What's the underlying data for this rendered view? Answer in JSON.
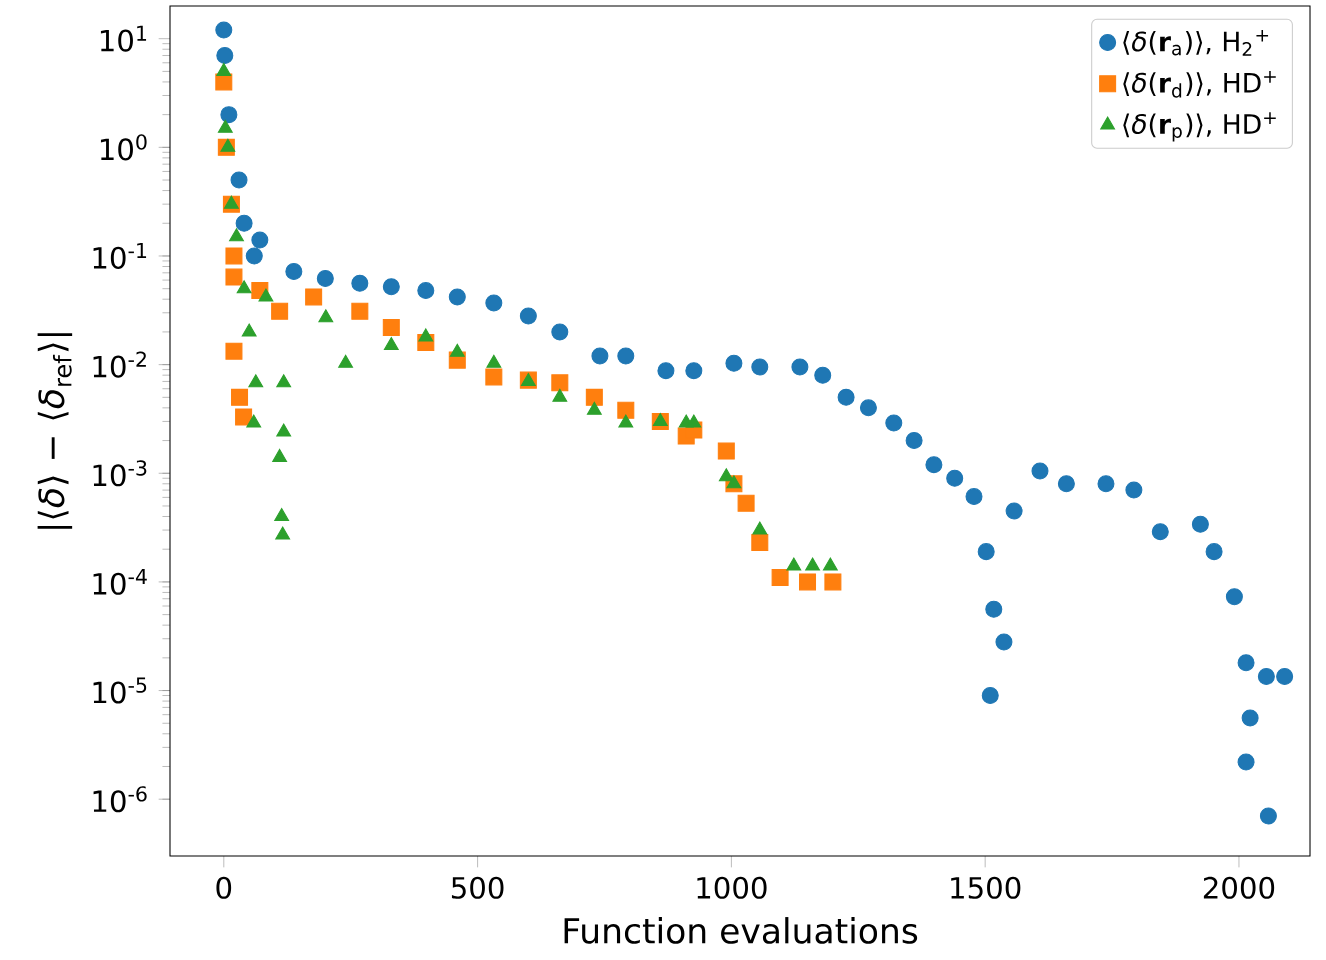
{
  "chart_data": {
    "type": "scatter",
    "xlabel": "Function evaluations",
    "ylabel": "|⟨*δ*⟩ − ⟨*δ*$_{ref}$⟩|",
    "log": "y",
    "legend": "top right",
    "xlim": [
      -106,
      2140
    ],
    "ylim": [
      3e-07,
      20
    ],
    "xticks": [
      0,
      500,
      1000,
      1500,
      2000
    ],
    "yticks": [
      {
        "value": 1e-06,
        "label": "10$^{-6}$"
      },
      {
        "value": 1e-05,
        "label": "10$^{-5}$"
      },
      {
        "value": 0.0001,
        "label": "10$^{-4}$"
      },
      {
        "value": 0.001,
        "label": "10$^{-3}$"
      },
      {
        "value": 0.01,
        "label": "10$^{-2}$"
      },
      {
        "value": 0.1,
        "label": "10$^{-1}$"
      },
      {
        "value": 1,
        "label": "10$^{0}$"
      },
      {
        "value": 10,
        "label": "10$^{1}$"
      }
    ],
    "series": [
      {
        "name": "⟨*δ*(**r**$_{a}$)⟩, H$_{2}$$^{+}$",
        "color": "#1f77b4",
        "marker": "circle",
        "x": [
          0,
          2,
          5,
          10,
          20,
          30,
          40,
          60,
          71,
          138,
          200,
          268,
          330,
          398,
          460,
          532,
          600,
          662,
          741,
          792,
          871,
          926,
          1005,
          1056,
          1135,
          1180,
          1226,
          1270,
          1320,
          1360,
          1399,
          1440,
          1478,
          1502,
          1510,
          1517,
          1537,
          1557,
          1608,
          1660,
          1738,
          1793,
          1845,
          1924,
          1951,
          1991,
          2014,
          2022,
          2014,
          2054,
          2058,
          2090
        ],
        "values": [
          12,
          7,
          null,
          2,
          null,
          0.5,
          0.2,
          0.1,
          0.14,
          0.072,
          0.062,
          0.056,
          0.052,
          0.048,
          0.042,
          0.037,
          0.028,
          0.02,
          0.012,
          0.012,
          0.0088,
          0.0088,
          0.0103,
          0.0095,
          0.0095,
          0.008,
          0.005,
          0.004,
          0.0029,
          0.002,
          0.0012,
          0.0009,
          0.00061,
          0.00019,
          9e-06,
          5.6e-05,
          2.8e-05,
          0.00045,
          0.00105,
          0.0008,
          0.0008,
          0.0007,
          0.00029,
          0.00034,
          0.00019,
          7.3e-05,
          1.8e-05,
          5.6e-06,
          2.2e-06,
          1.35e-05,
          7e-07,
          1.35e-05
        ]
      },
      {
        "name": "⟨*δ*(**r**$_{d}$)⟩, HD$^{+}$",
        "color": "#ff7f0e",
        "marker": "square",
        "x": [
          0,
          5,
          15,
          20,
          20,
          20,
          31,
          39,
          71,
          110,
          177,
          268,
          330,
          398,
          460,
          532,
          600,
          662,
          730,
          792,
          860,
          911,
          926,
          990,
          1005,
          1029,
          1056,
          1096,
          1150,
          1200
        ],
        "values": [
          4,
          1,
          0.3,
          0.1,
          0.064,
          0.0133,
          0.005,
          0.0033,
          0.048,
          0.031,
          0.042,
          0.031,
          0.022,
          0.016,
          0.011,
          0.0077,
          0.0072,
          0.0068,
          0.005,
          0.0038,
          0.003,
          0.0022,
          0.0025,
          0.0016,
          0.0008,
          0.00053,
          0.00023,
          0.00011,
          0.0001,
          0.0001
        ]
      },
      {
        "name": "⟨*δ*(**r**$_{p}$)⟩, HD$^{+}$",
        "color": "#2ca02c",
        "marker": "triangle",
        "x": [
          0,
          3,
          8,
          15,
          25,
          40,
          50,
          59,
          63,
          83,
          110,
          114,
          116,
          118,
          118,
          201,
          240,
          330,
          398,
          460,
          532,
          600,
          662,
          730,
          792,
          860,
          911,
          926,
          990,
          1005,
          1056,
          1123,
          1160,
          1195
        ],
        "values": [
          5,
          1.5,
          1,
          0.3,
          0.15,
          0.05,
          0.02,
          0.0029,
          0.0068,
          0.042,
          0.0014,
          0.0004,
          0.00027,
          0.0024,
          0.0068,
          0.027,
          0.0103,
          0.015,
          0.018,
          0.013,
          0.0103,
          0.007,
          0.005,
          0.0038,
          0.0029,
          0.003,
          0.0029,
          0.0029,
          0.00093,
          0.0008,
          0.0003,
          0.00014,
          0.00014,
          0.00014
        ]
      }
    ]
  }
}
